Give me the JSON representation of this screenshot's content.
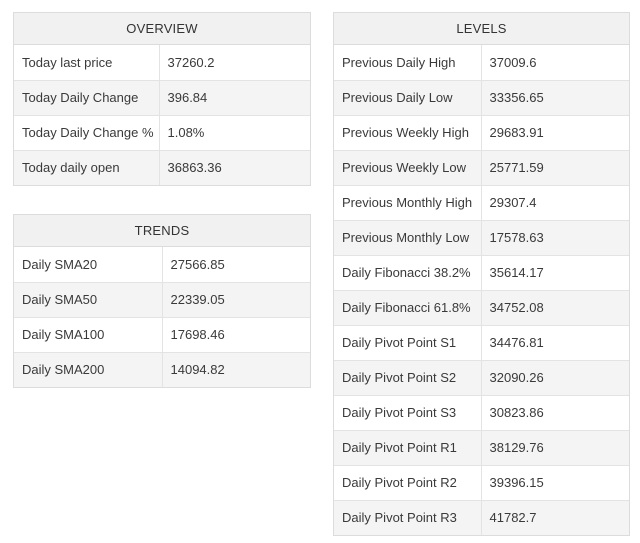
{
  "overview": {
    "title": "OVERVIEW",
    "rows": [
      {
        "label": "Today last price",
        "value": "37260.2"
      },
      {
        "label": "Today Daily Change",
        "value": "396.84"
      },
      {
        "label": "Today Daily Change %",
        "value": "1.08%"
      },
      {
        "label": "Today daily open",
        "value": "36863.36"
      }
    ]
  },
  "trends": {
    "title": "TRENDS",
    "rows": [
      {
        "label": "Daily SMA20",
        "value": "27566.85"
      },
      {
        "label": "Daily SMA50",
        "value": "22339.05"
      },
      {
        "label": "Daily SMA100",
        "value": "17698.46"
      },
      {
        "label": "Daily SMA200",
        "value": "14094.82"
      }
    ]
  },
  "levels": {
    "title": "LEVELS",
    "rows": [
      {
        "label": "Previous Daily High",
        "value": "37009.6"
      },
      {
        "label": "Previous Daily Low",
        "value": "33356.65"
      },
      {
        "label": "Previous Weekly High",
        "value": "29683.91"
      },
      {
        "label": "Previous Weekly Low",
        "value": "25771.59"
      },
      {
        "label": "Previous Monthly High",
        "value": "29307.4"
      },
      {
        "label": "Previous Monthly Low",
        "value": "17578.63"
      },
      {
        "label": "Daily Fibonacci 38.2%",
        "value": "35614.17"
      },
      {
        "label": "Daily Fibonacci 61.8%",
        "value": "34752.08"
      },
      {
        "label": "Daily Pivot Point S1",
        "value": "34476.81"
      },
      {
        "label": "Daily Pivot Point S2",
        "value": "32090.26"
      },
      {
        "label": "Daily Pivot Point S3",
        "value": "30823.86"
      },
      {
        "label": "Daily Pivot Point R1",
        "value": "38129.76"
      },
      {
        "label": "Daily Pivot Point R2",
        "value": "39396.15"
      },
      {
        "label": "Daily Pivot Point R3",
        "value": "41782.7"
      }
    ]
  }
}
